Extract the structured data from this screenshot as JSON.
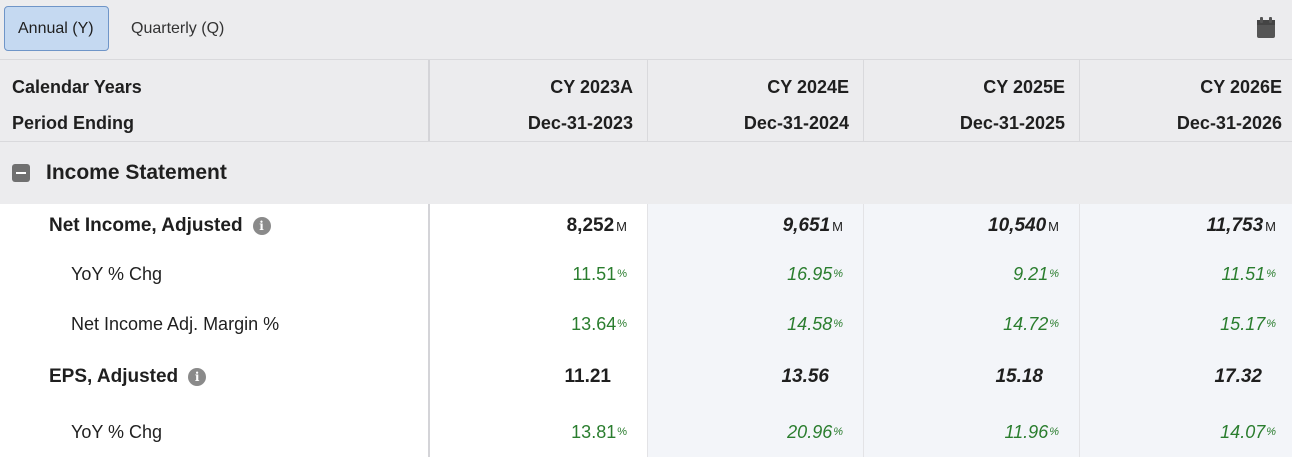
{
  "toolbar": {
    "tabs": [
      {
        "label": "Annual (Y)",
        "active": true
      },
      {
        "label": "Quarterly (Q)",
        "active": false
      }
    ],
    "calendar_icon": "calendar-icon"
  },
  "header": {
    "row1_label": "Calendar Years",
    "row2_label": "Period Ending",
    "columns": [
      {
        "year": "CY 2023A",
        "date": "Dec-31-2023"
      },
      {
        "year": "CY 2024E",
        "date": "Dec-31-2024"
      },
      {
        "year": "CY 2025E",
        "date": "Dec-31-2025"
      },
      {
        "year": "CY 2026E",
        "date": "Dec-31-2026"
      }
    ]
  },
  "section": {
    "title": "Income Statement",
    "icon": "collapse-icon"
  },
  "rows": [
    {
      "label": "Net Income, Adjusted",
      "info": "i",
      "unit": "M",
      "values": [
        "8,252",
        "9,651",
        "10,540",
        "11,753"
      ]
    },
    {
      "label": "YoY % Chg",
      "unit": "%",
      "values": [
        "11.51",
        "16.95",
        "9.21",
        "11.51"
      ]
    },
    {
      "label": "Net Income Adj. Margin %",
      "unit": "%",
      "values": [
        "13.64",
        "14.58",
        "14.72",
        "15.17"
      ]
    },
    {
      "label": "EPS, Adjusted",
      "info": "i",
      "values": [
        "11.21",
        "13.56",
        "15.18",
        "17.32"
      ]
    },
    {
      "label": "YoY % Chg",
      "unit": "%",
      "values": [
        "13.81",
        "20.96",
        "11.96",
        "14.07"
      ]
    }
  ],
  "colors": {
    "positive": "#2a7d2e",
    "active_tab_bg": "#c5d9f1"
  }
}
